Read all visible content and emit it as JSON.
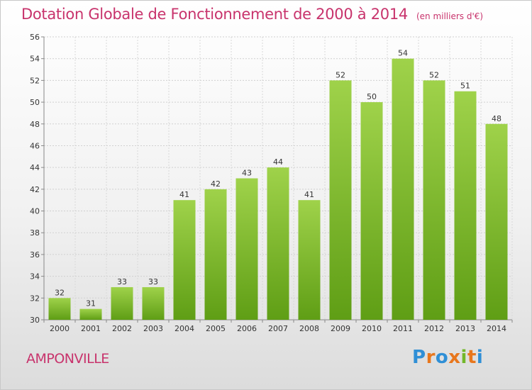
{
  "chart_data": {
    "type": "bar",
    "title": "Dotation Globale de Fonctionnement de 2000 à 2014",
    "unit": "(en milliers d'€)",
    "xlabel": "",
    "ylabel": "",
    "categories": [
      "2000",
      "2001",
      "2002",
      "2003",
      "2004",
      "2005",
      "2006",
      "2007",
      "2008",
      "2009",
      "2010",
      "2011",
      "2012",
      "2013",
      "2014"
    ],
    "values": [
      32,
      31,
      33,
      33,
      41,
      42,
      43,
      44,
      41,
      52,
      50,
      54,
      52,
      51,
      48
    ],
    "ylim": [
      30,
      56
    ],
    "yticks": [
      30,
      32,
      34,
      36,
      38,
      40,
      42,
      44,
      46,
      48,
      50,
      52,
      54,
      56
    ],
    "grid": true,
    "bar_color": "#8cc63f"
  },
  "place": "AMPONVILLE",
  "brand": {
    "name": "Proxiti",
    "letters": [
      "P",
      "r",
      "o",
      "x",
      "i",
      "t",
      "i"
    ]
  }
}
